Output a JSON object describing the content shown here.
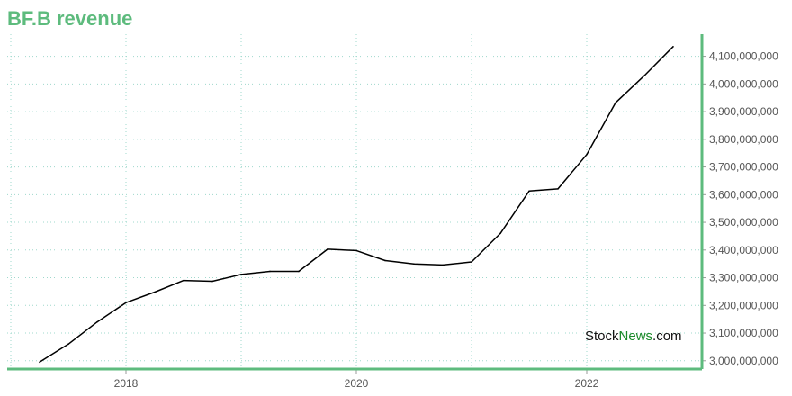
{
  "header": {
    "title": "BF.B revenue"
  },
  "watermark": {
    "part1": "Stock",
    "part2": "News",
    "part3": ".com"
  },
  "colors": {
    "title": "#5dbb7d",
    "axis": "#5dbb7d",
    "grid": "#9fd8cc",
    "line": "#000000"
  },
  "chart_data": {
    "type": "line",
    "title": "BF.B revenue",
    "xlabel": "",
    "ylabel": "",
    "x_tick_labels": [
      "2018",
      "2020",
      "2022"
    ],
    "y_tick_labels": [
      "3,000,000,000",
      "3,100,000,000",
      "3,200,000,000",
      "3,300,000,000",
      "3,400,000,000",
      "3,500,000,000",
      "3,600,000,000",
      "3,700,000,000",
      "3,800,000,000",
      "3,900,000,000",
      "4,000,000,000",
      "4,100,000,000"
    ],
    "ylim": [
      2970000000,
      4180000000
    ],
    "xlim": [
      2017.0,
      2024.0
    ],
    "grid": true,
    "y_axis_side": "right",
    "series": [
      {
        "values_x": [
          2017.25,
          2017.5,
          2017.75,
          2018.0,
          2018.25,
          2018.5,
          2018.75,
          2019.0,
          2019.25,
          2019.5,
          2019.75,
          2020.0,
          2020.25,
          2020.5,
          2020.75,
          2021.0,
          2021.25,
          2021.5,
          2021.75,
          2022.0,
          2022.25,
          2022.5,
          2022.75
        ],
        "values": [
          2995000000,
          3060000000,
          3140000000,
          3210000000,
          3248000000,
          3290000000,
          3287000000,
          3312000000,
          3323000000,
          3323000000,
          3403000000,
          3398000000,
          3362000000,
          3350000000,
          3346000000,
          3357000000,
          3460000000,
          3613000000,
          3621000000,
          3745000000,
          3932000000,
          4030000000,
          4135000000
        ]
      }
    ]
  }
}
